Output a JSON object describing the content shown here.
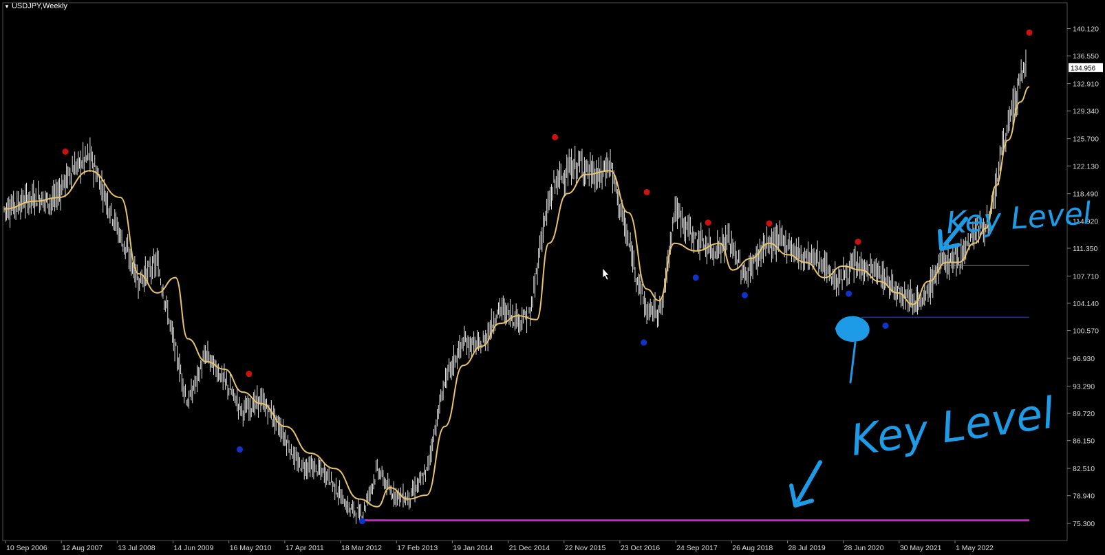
{
  "window": {
    "symbol_title": "USDJPY,Weekly"
  },
  "colors": {
    "background": "#000000",
    "candles": "#e6e6e6",
    "moving_average": "#e8c56a",
    "swing_high": "#cc1111",
    "swing_low": "#1133cc",
    "support_line": "#cc22cc",
    "pen_annotation": "#1e9be6",
    "axis_text": "#dddddd"
  },
  "chart_data": {
    "type": "line",
    "title": "USDJPY,Weekly",
    "ylim": [
      74.5,
      140.8
    ],
    "y_ticks": [
      "140.120",
      "136.550",
      "132.910",
      "129.340",
      "125.700",
      "122.130",
      "118.490",
      "114.920",
      "111.350",
      "107.710",
      "104.140",
      "100.570",
      "96.930",
      "93.290",
      "89.720",
      "86.150",
      "82.510",
      "78.940",
      "75.300"
    ],
    "x_ticks": [
      "10 Sep 2006",
      "12 Aug 2007",
      "13 Jul 2008",
      "14 Jun 2009",
      "16 May 2010",
      "17 Apr 2011",
      "18 Mar 2012",
      "17 Feb 2013",
      "19 Jan 2014",
      "21 Dec 2014",
      "22 Nov 2015",
      "23 Oct 2016",
      "24 Sep 2017",
      "26 Aug 2018",
      "28 Jul 2019",
      "28 Jun 2020",
      "30 May 2021",
      "1 May 2022"
    ],
    "current_price": "134.956",
    "price_series": {
      "x": [
        2006.0,
        2006.5,
        2006.8,
        2007.1,
        2007.4,
        2007.9,
        2008.2,
        2008.5,
        2008.8,
        2009.0,
        2009.3,
        2009.6,
        2009.9,
        2010.2,
        2010.5,
        2010.8,
        2011.1,
        2011.3,
        2011.6,
        2011.85,
        2012.1,
        2012.3,
        2012.6,
        2012.9,
        2013.2,
        2013.5,
        2013.8,
        2014.1,
        2014.4,
        2014.6,
        2014.8,
        2015.0,
        2015.4,
        2015.7,
        2015.9,
        2016.2,
        2016.5,
        2016.75,
        2016.95,
        2017.3,
        2017.6,
        2017.85,
        2018.1,
        2018.4,
        2018.7,
        2019.0,
        2019.3,
        2019.6,
        2019.9,
        2020.2,
        2020.5,
        2020.8,
        2021.0,
        2021.3,
        2021.6,
        2021.9,
        2022.1,
        2022.3,
        2022.5,
        2022.7
      ],
      "y": [
        116.5,
        118.0,
        117.5,
        121.5,
        123.5,
        113.0,
        107.0,
        109.5,
        98.0,
        91.0,
        97.5,
        94.0,
        90.0,
        91.5,
        88.0,
        83.0,
        82.5,
        81.5,
        77.5,
        76.5,
        82.5,
        79.5,
        78.5,
        82.0,
        94.0,
        99.0,
        98.5,
        103.5,
        102.0,
        102.5,
        114.0,
        120.0,
        122.5,
        120.5,
        122.5,
        112.0,
        103.0,
        103.5,
        116.5,
        112.5,
        111.0,
        112.5,
        107.5,
        111.5,
        112.5,
        110.5,
        110.0,
        107.0,
        109.0,
        108.5,
        106.5,
        105.0,
        104.0,
        109.5,
        110.0,
        114.0,
        114.5,
        124.0,
        130.5,
        135.5
      ]
    },
    "moving_average_series": {
      "x": [
        2006.0,
        2006.5,
        2006.9,
        2007.4,
        2007.9,
        2008.2,
        2008.5,
        2008.8,
        2009.0,
        2009.3,
        2009.6,
        2009.9,
        2010.2,
        2010.6,
        2011.0,
        2011.4,
        2011.8,
        2012.1,
        2012.3,
        2012.6,
        2012.9,
        2013.2,
        2013.5,
        2013.8,
        2014.1,
        2014.4,
        2014.7,
        2014.9,
        2015.2,
        2015.5,
        2015.9,
        2016.2,
        2016.5,
        2016.7,
        2016.95,
        2017.3,
        2017.7,
        2017.9,
        2018.2,
        2018.5,
        2018.8,
        2019.1,
        2019.4,
        2019.7,
        2020.0,
        2020.3,
        2020.6,
        2020.85,
        2021.1,
        2021.4,
        2021.6,
        2021.85,
        2022.05,
        2022.2,
        2022.4,
        2022.6,
        2022.75
      ],
      "y": [
        116.5,
        117.5,
        118.0,
        121.5,
        118.0,
        108.0,
        105.5,
        107.5,
        99.5,
        96.5,
        95.5,
        92.5,
        91.0,
        88.0,
        84.5,
        82.5,
        78.5,
        77.5,
        80.0,
        78.5,
        79.0,
        88.0,
        96.0,
        98.5,
        101.5,
        102.5,
        102.0,
        112.0,
        118.5,
        121.0,
        121.5,
        116.0,
        106.0,
        104.5,
        112.0,
        111.0,
        112.0,
        108.5,
        110.0,
        112.0,
        110.5,
        109.5,
        107.5,
        109.0,
        108.5,
        107.0,
        105.5,
        104.0,
        107.0,
        109.5,
        109.5,
        112.0,
        114.0,
        119.5,
        125.5,
        130.5,
        132.5
      ]
    },
    "swing_highs": {
      "x": [
        2007.0,
        2010.0,
        2015.0,
        2016.5,
        2017.5,
        2018.5,
        2019.95,
        2022.75
      ],
      "y": [
        124.0,
        94.9,
        125.9,
        118.7,
        114.7,
        114.6,
        112.2,
        139.6
      ]
    },
    "swing_lows": {
      "x": [
        2009.85,
        2011.85,
        2016.45,
        2017.3,
        2018.1,
        2019.8,
        2020.4
      ],
      "y": [
        85.0,
        75.6,
        99.0,
        107.5,
        105.2,
        105.4,
        101.2
      ]
    },
    "horizontal_levels": {
      "support_magenta": {
        "y": 75.7,
        "x_from": 2011.85,
        "x_to": 2022.75
      },
      "level_blue": {
        "y": 102.3,
        "x_from": 2020.0,
        "x_to": 2022.75
      },
      "level_grey": {
        "y": 109.1,
        "x_from": 2021.2,
        "x_to": 2022.75
      }
    },
    "annotations": [
      "Key Level",
      "Key Level"
    ]
  }
}
